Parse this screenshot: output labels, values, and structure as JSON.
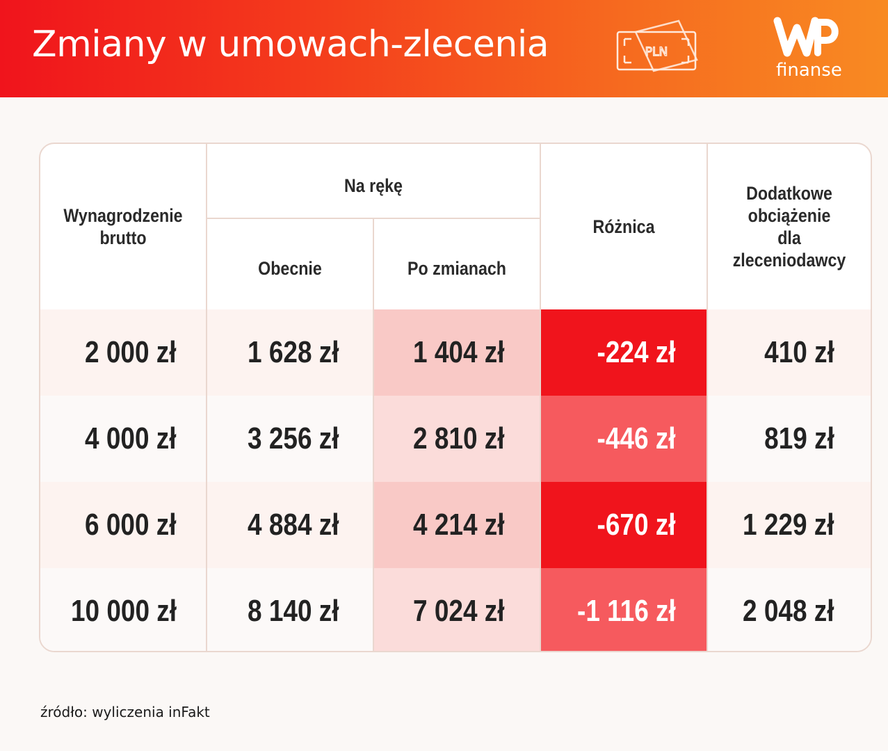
{
  "header": {
    "title": "Zmiany w umowach-zlecenia",
    "icon_label": "PLN",
    "logo_text": "finanse"
  },
  "table": {
    "headers": {
      "gross": "Wynagrodzenie\nbrutto",
      "net_group": "Na rękę",
      "net_current": "Obecnie",
      "net_after": "Po zmianach",
      "difference": "Różnica",
      "employer_cost": "Dodatkowe\nobciążenie\ndla zleceniodawcy"
    },
    "rows": [
      {
        "gross": "2 000 zł",
        "current": "1 628 zł",
        "after": "1 404 zł",
        "difference": "-224 zł",
        "employer": "410 zł"
      },
      {
        "gross": "4 000 zł",
        "current": "3 256 zł",
        "after": "2 810 zł",
        "difference": "-446 zł",
        "employer": "819 zł"
      },
      {
        "gross": "6 000 zł",
        "current": "4 884 zł",
        "after": "4 214 zł",
        "difference": "-670 zł",
        "employer": "1 229 zł"
      },
      {
        "gross": "10 000 zł",
        "current": "8 140 zł",
        "after": "7 024 zł",
        "difference": "-1 116 zł",
        "employer": "2 048 zł"
      }
    ]
  },
  "colors": {
    "header_start": "#f0141c",
    "header_end": "#f88a22",
    "diff_strong": "#f0141c",
    "diff_soft": "#f65a5e",
    "after_strong": "#f9c9c6",
    "after_soft": "#fbdcda",
    "row_tint": "#fdf3f0"
  },
  "source": "źródło: wyliczenia inFakt",
  "chart_data": {
    "type": "table",
    "columns": [
      "Wynagrodzenie brutto",
      "Na rękę — Obecnie",
      "Na rękę — Po zmianach",
      "Różnica",
      "Dodatkowe obciążenie dla zleceniodawcy"
    ],
    "rows": [
      [
        2000,
        1628,
        1404,
        -224,
        410
      ],
      [
        4000,
        3256,
        2810,
        -446,
        819
      ],
      [
        6000,
        4884,
        4214,
        -670,
        1229
      ],
      [
        10000,
        8140,
        7024,
        -1116,
        2048
      ]
    ],
    "unit": "zł"
  }
}
